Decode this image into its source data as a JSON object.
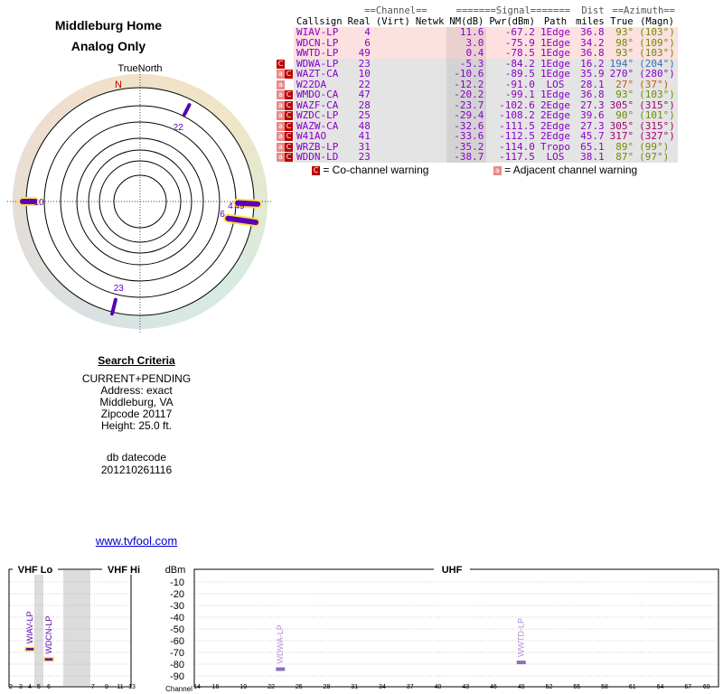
{
  "header": {
    "title_line1": "Middleburg Home",
    "title_line2": "Analog Only"
  },
  "polar": {
    "north_label": "TrueNorth",
    "n_letter": "N",
    "markers": [
      {
        "label": "22",
        "azimuth": 27
      },
      {
        "label": "10",
        "azimuth": 270
      },
      {
        "label": "49",
        "azimuth": 93
      },
      {
        "label": "4",
        "azimuth": 93
      },
      {
        "label": "6",
        "azimuth": 98
      },
      {
        "label": "23",
        "azimuth": 194
      }
    ]
  },
  "table": {
    "group_headers": {
      "channel": "==Channel==",
      "signal": "=======Signal=======",
      "dist": "Dist",
      "azimuth": "==Azimuth=="
    },
    "columns": {
      "callsign": "Callsign",
      "real": "Real",
      "virt": "(Virt)",
      "netwk": "Netwk",
      "nm": "NM(dB)",
      "pwr": "Pwr(dBm)",
      "path": "Path",
      "miles": "miles",
      "true": "True",
      "magn": "(Magn)"
    },
    "rows": [
      {
        "flag": "",
        "callsign": "WIAV-LP",
        "real": "4",
        "virt": "",
        "netwk": "",
        "nm": "11.6",
        "pwr": "-67.2",
        "path": "1Edge",
        "dist": "36.8",
        "az_true": "93°",
        "az_magn": "(103°)",
        "bg": "#fde0e0",
        "path_color": "#8a00c8",
        "az_color": "#6f8c00"
      },
      {
        "flag": "",
        "callsign": "WDCN-LP",
        "real": "6",
        "virt": "",
        "netwk": "",
        "nm": "3.0",
        "pwr": "-75.9",
        "path": "1Edge",
        "dist": "34.2",
        "az_true": "98°",
        "az_magn": "(109°)",
        "bg": "#fde0e0",
        "path_color": "#8a00c8",
        "az_color": "#6f8c00"
      },
      {
        "flag": "",
        "callsign": "WWTD-LP",
        "real": "49",
        "virt": "",
        "netwk": "",
        "nm": "0.4",
        "pwr": "-78.5",
        "path": "1Edge",
        "dist": "36.8",
        "az_true": "93°",
        "az_magn": "(103°)",
        "bg": "#fde0e0",
        "path_color": "#8a00c8",
        "az_color": "#6f8c00"
      },
      {
        "flag": "C",
        "callsign": "WDWA-LP",
        "real": "23",
        "virt": "",
        "netwk": "",
        "nm": "-5.3",
        "pwr": "-84.2",
        "path": "1Edge",
        "dist": "16.2",
        "az_true": "194°",
        "az_magn": "(204°)",
        "bg": "#e4e4e4",
        "path_color": "#8a00c8",
        "az_color": "#3a6fb0"
      },
      {
        "flag": "aC",
        "callsign": "WAZT-CA",
        "real": "10",
        "virt": "",
        "netwk": "",
        "nm": "-10.6",
        "pwr": "-89.5",
        "path": "1Edge",
        "dist": "35.9",
        "az_true": "270°",
        "az_magn": "(280°)",
        "bg": "#e4e4e4",
        "path_color": "#8a00c8",
        "az_color": "#8a00c8"
      },
      {
        "flag": "a",
        "callsign": "W22DA",
        "real": "22",
        "virt": "",
        "netwk": "",
        "nm": "-12.2",
        "pwr": "-91.0",
        "path": "LOS",
        "dist": "28.1",
        "az_true": "27°",
        "az_magn": "(37°)",
        "bg": "#e4e4e4",
        "path_color": "#8a00c8",
        "az_color": "#c85a00"
      },
      {
        "flag": "aC",
        "callsign": "WMDO-CA",
        "real": "47",
        "virt": "",
        "netwk": "",
        "nm": "-20.2",
        "pwr": "-99.1",
        "path": "1Edge",
        "dist": "36.8",
        "az_true": "93°",
        "az_magn": "(103°)",
        "bg": "#e4e4e4",
        "path_color": "#8a00c8",
        "az_color": "#6f8c00"
      },
      {
        "flag": "aC",
        "callsign": "WAZF-CA",
        "real": "28",
        "virt": "",
        "netwk": "",
        "nm": "-23.7",
        "pwr": "-102.6",
        "path": "2Edge",
        "dist": "27.3",
        "az_true": "305°",
        "az_magn": "(315°)",
        "bg": "#e4e4e4",
        "path_color": "#8a00c8",
        "az_color": "#a0006e"
      },
      {
        "flag": "aC",
        "callsign": "WZDC-LP",
        "real": "25",
        "virt": "",
        "netwk": "",
        "nm": "-29.4",
        "pwr": "-108.2",
        "path": "2Edge",
        "dist": "39.6",
        "az_true": "90°",
        "az_magn": "(101°)",
        "bg": "#e4e4e4",
        "path_color": "#8a00c8",
        "az_color": "#6f8c00"
      },
      {
        "flag": "aC",
        "callsign": "WAZW-CA",
        "real": "48",
        "virt": "",
        "netwk": "",
        "nm": "-32.6",
        "pwr": "-111.5",
        "path": "2Edge",
        "dist": "27.3",
        "az_true": "305°",
        "az_magn": "(315°)",
        "bg": "#e4e4e4",
        "path_color": "#8a00c8",
        "az_color": "#a0006e"
      },
      {
        "flag": "aC",
        "callsign": "W41AO",
        "real": "41",
        "virt": "",
        "netwk": "",
        "nm": "-33.6",
        "pwr": "-112.5",
        "path": "2Edge",
        "dist": "45.7",
        "az_true": "317°",
        "az_magn": "(327°)",
        "bg": "#e4e4e4",
        "path_color": "#8a00c8",
        "az_color": "#a0006e"
      },
      {
        "flag": "aC",
        "callsign": "WRZB-LP",
        "real": "31",
        "virt": "",
        "netwk": "",
        "nm": "-35.2",
        "pwr": "-114.0",
        "path": "Tropo",
        "dist": "65.1",
        "az_true": "89°",
        "az_magn": "(99°)",
        "bg": "#e4e4e4",
        "path_color": "#8a00c8",
        "az_color": "#6f8c00"
      },
      {
        "flag": "aC",
        "callsign": "WDDN-LD",
        "real": "23",
        "virt": "",
        "netwk": "",
        "nm": "-38.7",
        "pwr": "-117.5",
        "path": "LOS",
        "dist": "38.1",
        "az_true": "87°",
        "az_magn": "(97°)",
        "bg": "#e4e4e4",
        "path_color": "#8a00c8",
        "az_color": "#6f8c00"
      }
    ]
  },
  "legend": {
    "co_badge": "C",
    "co_text": "= Co-channel warning",
    "adj_badge": "a",
    "adj_text": "= Adjacent channel warning"
  },
  "search": {
    "heading": "Search Criteria",
    "mode": "CURRENT+PENDING",
    "address": "Address: exact",
    "city": "Middleburg, VA",
    "zip": "Zipcode 20117",
    "height": "Height: 25.0 ft.",
    "db_label": "db datecode",
    "db_value": "201210261116"
  },
  "footer_link": "www.tvfool.com",
  "spectrum": {
    "vhf_lo_label": "VHF Lo",
    "vhf_hi_label": "VHF Hi",
    "uhf_label": "UHF",
    "dbm_label": "dBm",
    "channel_label": "Channel",
    "y_ticks": [
      "-10",
      "-20",
      "-30",
      "-40",
      "-50",
      "-60",
      "-70",
      "-80",
      "-90"
    ],
    "vhf_lo_ticks": [
      "2",
      "3",
      "4",
      "5",
      "6"
    ],
    "vhf_hi_ticks": [
      "7",
      "9",
      "11",
      "13"
    ],
    "uhf_ticks": [
      "14",
      "16",
      "19",
      "22",
      "25",
      "28",
      "31",
      "34",
      "37",
      "40",
      "43",
      "46",
      "49",
      "52",
      "55",
      "58",
      "61",
      "64",
      "67",
      "69"
    ],
    "bars": [
      {
        "label": "WIAV-LP",
        "channel": 4,
        "dbm": -67.2
      },
      {
        "label": "WDCN-LP",
        "channel": 6,
        "dbm": -75.9
      },
      {
        "label": "WDWA-LP",
        "channel": 23,
        "dbm": -84.2
      },
      {
        "label": "WWTD-LP",
        "channel": 49,
        "dbm": -78.5
      }
    ]
  },
  "colors": {
    "station_purple": "#8a00c8",
    "marker_purple": "#5b00b4",
    "marker_highlight": "#ffe14a",
    "co_channel": "#bb0000",
    "adjacent": "#e98a8a"
  }
}
